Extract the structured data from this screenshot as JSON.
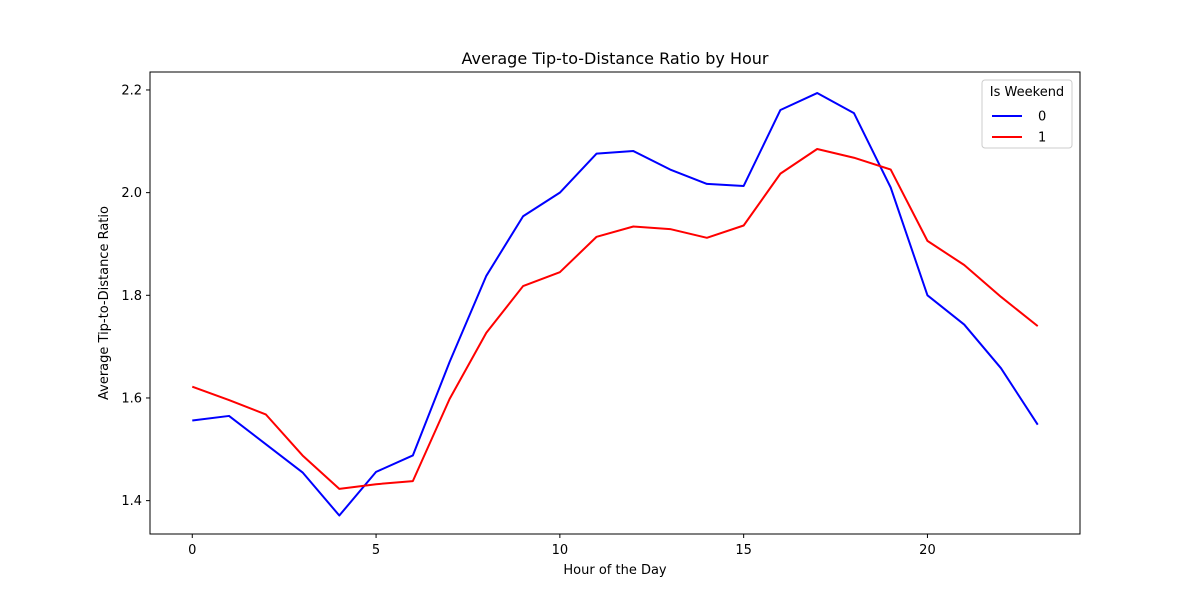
{
  "chart_data": {
    "type": "line",
    "title": "Average Tip-to-Distance Ratio by Hour",
    "xlabel": "Hour of the Day",
    "ylabel": "Average Tip-to-Distance Ratio",
    "xlim": [
      -1.15,
      24.15
    ],
    "ylim": [
      1.335,
      2.235
    ],
    "xticks": [
      0,
      5,
      10,
      15,
      20
    ],
    "yticks": [
      1.4,
      1.6,
      1.8,
      2.0,
      2.2
    ],
    "xtick_labels": [
      "0",
      "5",
      "10",
      "15",
      "20"
    ],
    "ytick_labels": [
      "1.4",
      "1.6",
      "1.8",
      "2.0",
      "2.2"
    ],
    "grid": false,
    "legend": {
      "title": "Is Weekend",
      "placement": "top-right"
    },
    "x": [
      0,
      1,
      2,
      3,
      4,
      5,
      6,
      7,
      8,
      9,
      10,
      11,
      12,
      13,
      14,
      15,
      16,
      17,
      18,
      19,
      20,
      21,
      22,
      23
    ],
    "series": [
      {
        "name": "0",
        "color": "#0000ff",
        "values": [
          1.556,
          1.565,
          1.51,
          1.455,
          1.371,
          1.456,
          1.488,
          1.67,
          1.838,
          1.954,
          2.0,
          2.076,
          2.081,
          2.045,
          2.017,
          2.013,
          2.161,
          2.194,
          2.155,
          2.01,
          1.8,
          1.743,
          1.658,
          1.548
        ]
      },
      {
        "name": "1",
        "color": "#ff0000",
        "values": [
          1.622,
          1.596,
          1.568,
          1.488,
          1.423,
          1.432,
          1.438,
          1.598,
          1.727,
          1.818,
          1.845,
          1.914,
          1.934,
          1.929,
          1.912,
          1.936,
          2.037,
          2.085,
          2.068,
          2.045,
          1.906,
          1.859,
          1.797,
          1.74
        ]
      }
    ]
  }
}
